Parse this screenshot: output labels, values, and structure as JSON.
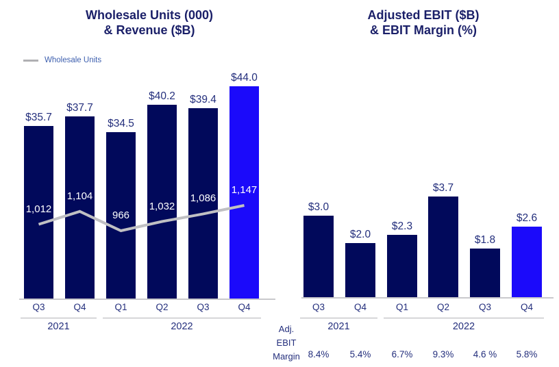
{
  "colors": {
    "bar_primary": "#01095b",
    "bar_highlight": "#1b0afa",
    "line_gray": "#c0c0c3",
    "axis_line": "#c9c9cc",
    "group_line": "#b2b2b7",
    "navy_text": "#232e7c",
    "title_navy": "#1b2069",
    "legend_swatch": "#b0b0b3",
    "legend_text": "#3d5fae",
    "white_label": "#ffffff"
  },
  "chart_data": [
    {
      "type": "bar",
      "title_lines": [
        "Wholesale Units (000)",
        "& Revenue ($B)"
      ],
      "categories": [
        "Q3",
        "Q4",
        "Q1",
        "Q2",
        "Q3",
        "Q4"
      ],
      "year_groups": [
        {
          "label": "2021",
          "from": 0,
          "to": 1
        },
        {
          "label": "2022",
          "from": 2,
          "to": 5
        }
      ],
      "bar_series": {
        "name": "Revenue ($B)",
        "values": [
          35.7,
          37.7,
          34.5,
          40.2,
          39.4,
          44.0
        ],
        "labels": [
          "$35.7",
          "$37.7",
          "$34.5",
          "$40.2",
          "$39.4",
          "$44.0"
        ],
        "highlight_index": 5
      },
      "line_series": {
        "name": "Wholesale Units",
        "values": [
          1012,
          1104,
          966,
          1032,
          1086,
          1147
        ],
        "labels": [
          "1,012",
          "1,104",
          "966",
          "1,032",
          "1,086",
          "1,147"
        ]
      },
      "legend": [
        {
          "label": "Wholesale Units",
          "swatch": "line"
        }
      ],
      "ylim": [
        0,
        44
      ],
      "grid": false,
      "legend_position": "top-left"
    },
    {
      "type": "bar",
      "title_lines": [
        "Adjusted EBIT ($B)",
        "& EBIT Margin (%)"
      ],
      "categories": [
        "Q3",
        "Q4",
        "Q1",
        "Q2",
        "Q3",
        "Q4"
      ],
      "year_groups": [
        {
          "label": "2021",
          "from": 0,
          "to": 1
        },
        {
          "label": "2022",
          "from": 2,
          "to": 5
        }
      ],
      "bar_series": {
        "name": "Adjusted EBIT ($B)",
        "values": [
          3.0,
          2.0,
          2.3,
          3.7,
          1.8,
          2.6
        ],
        "labels": [
          "$3.0",
          "$2.0",
          "$2.3",
          "$3.7",
          "$1.8",
          "$2.6"
        ],
        "highlight_index": 5
      },
      "margin_row": {
        "label_lines": [
          "Adj.",
          "EBIT",
          "Margin"
        ],
        "values_pct": [
          8.4,
          5.4,
          6.7,
          9.3,
          4.6,
          5.8
        ],
        "labels": [
          "8.4%",
          "5.4%",
          "6.7%",
          "9.3%",
          "4.6 %",
          "5.8%"
        ]
      },
      "ylim": [
        0,
        3.7
      ],
      "grid": false
    }
  ]
}
